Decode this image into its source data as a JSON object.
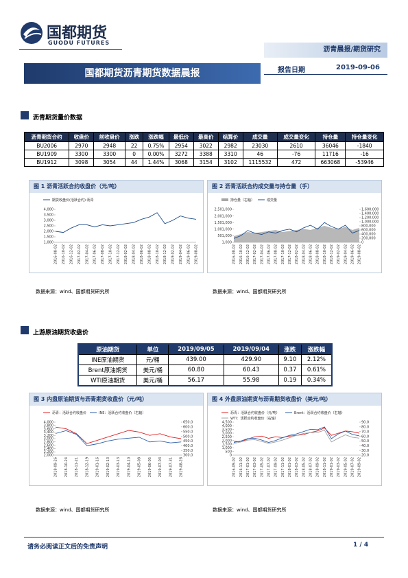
{
  "header": {
    "logo_cn": "国都期货",
    "logo_en": "GUODU FUTURES",
    "category": "沥青晨报/期货研究",
    "title": "国都期货沥青期货数据晨报",
    "date_label": "报告日期",
    "date": "2019-09-06"
  },
  "section1": {
    "title": "沥青期货量价数据",
    "table": {
      "headers": [
        "沥青期货合约",
        "收盘价",
        "前收盘价",
        "涨跌",
        "涨跌幅",
        "最低价",
        "最高价",
        "结算价",
        "成交量",
        "成交量变化",
        "持仓量",
        "持仓量变化"
      ],
      "rows": [
        [
          "BU2006",
          "2970",
          "2948",
          "22",
          "0.75%",
          "2954",
          "3022",
          "2982",
          "23030",
          "2610",
          "36046",
          "-1840"
        ],
        [
          "BU1909",
          "3300",
          "3300",
          "0",
          "0.00%",
          "3272",
          "3388",
          "3310",
          "46",
          "-76",
          "11716",
          "-16"
        ],
        [
          "BU1912",
          "3098",
          "3054",
          "44",
          "1.44%",
          "3068",
          "3154",
          "3102",
          "1115532",
          "472",
          "663068",
          "-53946"
        ]
      ]
    }
  },
  "section2": {
    "title": "上游原油期货收盘价",
    "table": {
      "headers": [
        "原油期货",
        "单位",
        "2019/09/05",
        "2019/09/04",
        "涨跌",
        "涨跌幅"
      ],
      "rows": [
        [
          "INE原油期货",
          "元/桶",
          "439.00",
          "429.90",
          "9.10",
          "2.12%"
        ],
        [
          "Brent原油期货",
          "美元/桶",
          "60.80",
          "60.43",
          "0.37",
          "0.61%"
        ],
        [
          "WTI原油期货",
          "美元/桶",
          "56.17",
          "55.98",
          "0.19",
          "0.34%"
        ]
      ]
    }
  },
  "chart_data": [
    {
      "type": "line",
      "title": "图 1 沥青活跃合约收盘价（元/吨）",
      "source": "数据来源：wind、国都期货研究所",
      "categories": [
        "2016-08-02",
        "2016-10-02",
        "2016-12-02",
        "2017-02-02",
        "2017-04-02",
        "2017-06-02",
        "2017-08-02",
        "2017-10-02",
        "2017-12-02",
        "2018-02-02",
        "2018-04-02",
        "2018-06-02",
        "2018-08-02",
        "2018-10-02",
        "2018-12-02",
        "2019-02-02",
        "2019-04-02",
        "2019-06-02",
        "2019-08-02"
      ],
      "ylim": [
        1000,
        4000
      ],
      "yticks": [
        {
          "value": 1000,
          "label": "1,000"
        },
        {
          "value": 1500,
          "label": "1,500"
        },
        {
          "value": 2000,
          "label": "2,000"
        },
        {
          "value": 2500,
          "label": "2,500"
        },
        {
          "value": 3000,
          "label": "3,000"
        },
        {
          "value": 3500,
          "label": "3,500"
        },
        {
          "value": 4000,
          "label": "4,000"
        }
      ],
      "series": [
        {
          "name": "期货收盘价(活跃合约):沥青",
          "color": "#1f4e8c",
          "values": [
            2000,
            1900,
            2300,
            2600,
            2600,
            2400,
            2600,
            2500,
            2600,
            2700,
            2800,
            3100,
            3300,
            3700,
            2700,
            3000,
            3400,
            3200,
            3100
          ]
        }
      ]
    },
    {
      "type": "line",
      "title": "图 2 沥青活跃合约成交量与持仓量（手）",
      "source": "数据来源：wind、国都期货研究所",
      "categories": [
        "2016-08-02",
        "2016-10-02",
        "2016-12-02",
        "2017-02-02",
        "2017-04-02",
        "2017-06-02",
        "2017-08-02",
        "2017-10-02",
        "2017-12-02",
        "2018-02-02",
        "2018-04-02",
        "2018-06-02",
        "2018-08-02",
        "2018-10-02",
        "2018-12-02",
        "2019-02-02",
        "2019-04-02",
        "2019-06-02",
        "2019-08-02"
      ],
      "ylim": [
        1000,
        2501000
      ],
      "yticks": [
        {
          "value": 1000,
          "label": "1,000"
        },
        {
          "value": 501000,
          "label": "501,000"
        },
        {
          "value": 1001000,
          "label": "1,001,000"
        },
        {
          "value": 1501000,
          "label": "1,501,000"
        },
        {
          "value": 2001000,
          "label": "2,001,000"
        },
        {
          "value": 2501000,
          "label": "2,501,000"
        }
      ],
      "y2lim": [
        0,
        1600000
      ],
      "y2ticks": [
        0,
        {
          "value": 200000,
          "label": "200,000"
        },
        {
          "value": 400000,
          "label": "400,000"
        },
        {
          "value": 600000,
          "label": "600,000"
        },
        {
          "value": 800000,
          "label": "800,000"
        },
        {
          "value": 1000000,
          "label": "1,000,000"
        },
        {
          "value": 1200000,
          "label": "1,200,000"
        },
        {
          "value": 1400000,
          "label": "1,400,000"
        },
        {
          "value": 1600000,
          "label": "1,600,000"
        }
      ],
      "series": [
        {
          "name": "持仓量（右轴）",
          "color": "#a6a6a6",
          "axis": "y2",
          "area": true,
          "values": [
            300000,
            400000,
            500000,
            450000,
            500000,
            550000,
            600000,
            500000,
            550000,
            600000,
            650000,
            600000,
            700000,
            800000,
            700000,
            650000,
            750000,
            600000,
            700000
          ]
        },
        {
          "name": "成交量",
          "color": "#1f4e8c",
          "values": [
            300000,
            500000,
            900000,
            700000,
            600000,
            800000,
            700000,
            900000,
            1000000,
            800000,
            1100000,
            1300000,
            1000000,
            1500000,
            1200000,
            1000000,
            1300000,
            700000,
            900000
          ]
        }
      ]
    },
    {
      "type": "line",
      "title": "图 3 内盘原油期货与沥青期货收盘价（元/吨）",
      "source": "数据来源：wind、国都期货研究所",
      "categories": [
        "2018-09-26",
        "2018-10-24",
        "2018-11-21",
        "2018-12-19",
        "2019-01-16",
        "2019-02-13",
        "2019-03-13",
        "2019-04-10",
        "2019-05-08",
        "2019-06-05",
        "2019-07-03",
        "2019-07-31",
        "2019-08-28"
      ],
      "ylim": [
        2000,
        4000
      ],
      "yticks": [
        {
          "value": 2000,
          "label": "2,000"
        },
        {
          "value": 2200,
          "label": "2,200"
        },
        {
          "value": 2400,
          "label": "2,400"
        },
        {
          "value": 2600,
          "label": "2,600"
        },
        {
          "value": 2800,
          "label": "2,800"
        },
        {
          "value": 3000,
          "label": "3,000"
        },
        {
          "value": 3200,
          "label": "3,200"
        },
        {
          "value": 3400,
          "label": "3,400"
        },
        {
          "value": 3600,
          "label": "3,600"
        },
        {
          "value": 3800,
          "label": "3,800"
        },
        {
          "value": 4000,
          "label": "4,000"
        }
      ],
      "y2lim": [
        300,
        650
      ],
      "y2ticks": [
        {
          "value": 300,
          "label": "300.0"
        },
        {
          "value": 350,
          "label": "350.0"
        },
        {
          "value": 400,
          "label": "400.0"
        },
        {
          "value": 450,
          "label": "450.0"
        },
        {
          "value": 500,
          "label": "500.0"
        },
        {
          "value": 550,
          "label": "550.0"
        },
        {
          "value": 600,
          "label": "600.0"
        },
        {
          "value": 650,
          "label": "650.0"
        }
      ],
      "series": [
        {
          "name": "沥青：活跃合约收盘价",
          "color": "#e02020",
          "values": [
            3700,
            3600,
            3300,
            2700,
            2900,
            3100,
            3300,
            3500,
            3400,
            3200,
            3300,
            3100,
            3000
          ]
        },
        {
          "name": "INE：活跃合约收盘价（右轴）",
          "color": "#2e5fa8",
          "axis": "y2",
          "values": [
            530,
            560,
            520,
            400,
            420,
            450,
            470,
            480,
            490,
            440,
            450,
            430,
            440
          ]
        }
      ]
    },
    {
      "type": "line",
      "title": "图 4 外盘原油期货与沥青期货收盘价（美元/吨）",
      "source": "数据来源：wind、国都期货研究所",
      "categories": [
        "2016-09-02",
        "2016-11-02",
        "2017-01-02",
        "2017-03-02",
        "2017-05-02",
        "2017-07-02",
        "2017-09-02",
        "2017-11-02",
        "2018-01-02",
        "2018-03-02",
        "2018-05-02",
        "2018-07-02",
        "2018-09-02",
        "2018-11-02",
        "2019-01-02",
        "2019-03-02",
        "2019-05-02",
        "2019-07-02",
        "2019-09-02"
      ],
      "ylim": [
        0,
        4500
      ],
      "yticks": [
        0,
        {
          "value": 500,
          "label": "500"
        },
        {
          "value": 1000,
          "label": "1,000"
        },
        {
          "value": 1500,
          "label": "1,500"
        },
        {
          "value": 2000,
          "label": "2,000"
        },
        {
          "value": 2500,
          "label": "2,500"
        },
        {
          "value": 3000,
          "label": "3,000"
        },
        {
          "value": 3500,
          "label": "3,500"
        },
        {
          "value": 4000,
          "label": "4,000"
        },
        {
          "value": 4500,
          "label": "4,500"
        }
      ],
      "y2lim": [
        20,
        90
      ],
      "y2ticks": [
        {
          "value": 20,
          "label": "20.0"
        },
        {
          "value": 30,
          "label": "30.0"
        },
        {
          "value": 40,
          "label": "40.0"
        },
        {
          "value": 50,
          "label": "50.0"
        },
        {
          "value": 60,
          "label": "60.0"
        },
        {
          "value": 70,
          "label": "70.0"
        },
        {
          "value": 80,
          "label": "80.0"
        },
        {
          "value": 90,
          "label": "90.0"
        }
      ],
      "series": [
        {
          "name": "沥青：活跃合约收盘价（元/吨）",
          "color": "#e02020",
          "values": [
            1900,
            1800,
            2200,
            2500,
            2600,
            2300,
            2500,
            2400,
            2600,
            2700,
            2800,
            3100,
            3300,
            3700,
            2700,
            3000,
            3300,
            3200,
            3000
          ]
        },
        {
          "name": "Brent：活跃合约收盘价（右轴）",
          "color": "#2e5fa8",
          "axis": "y2",
          "values": [
            47,
            50,
            55,
            56,
            52,
            47,
            51,
            57,
            62,
            65,
            70,
            75,
            74,
            80,
            55,
            65,
            71,
            64,
            61
          ]
        },
        {
          "name": "WTI：活跃合约收盘价（右轴）",
          "color": "#a0a0a0",
          "axis": "y2",
          "values": [
            45,
            48,
            52,
            53,
            49,
            45,
            48,
            52,
            57,
            62,
            66,
            68,
            68,
            73,
            48,
            56,
            63,
            58,
            56
          ]
        }
      ]
    }
  ],
  "footer": {
    "disclaimer": "请务必阅读正文后的免责声明",
    "page": "1 / 4"
  }
}
